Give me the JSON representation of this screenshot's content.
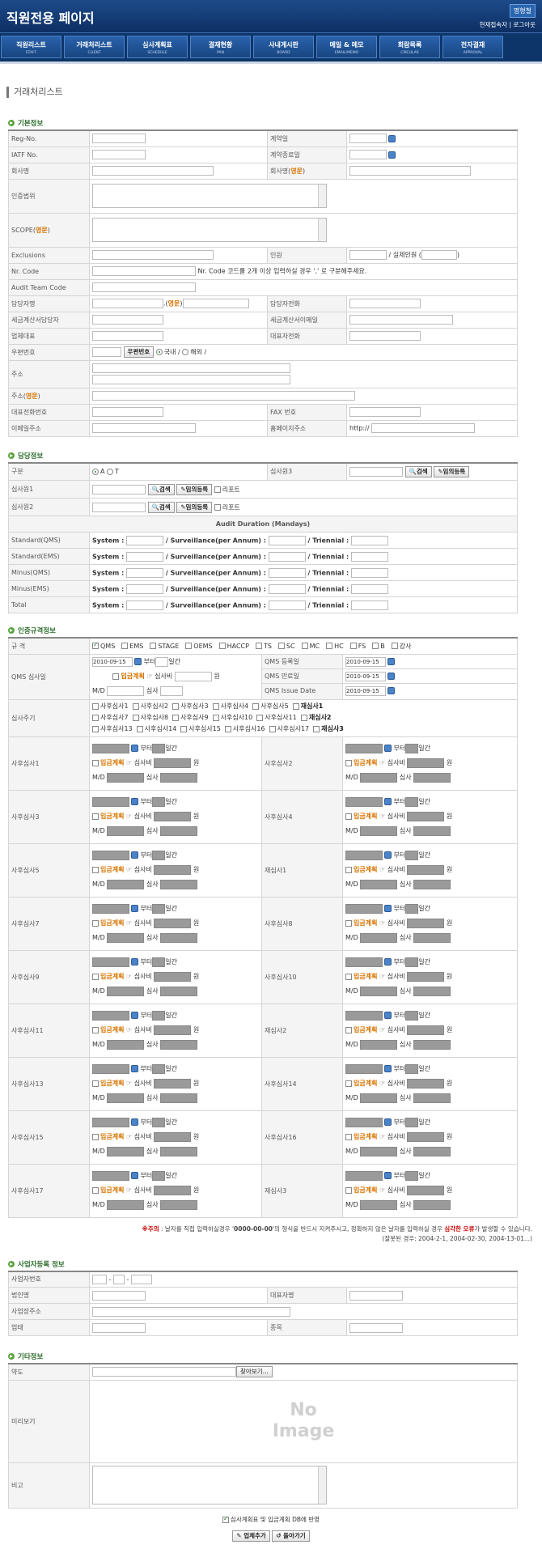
{
  "header": {
    "title": "직원전용 페이지",
    "user": "명형철",
    "links": "현재접속자 | 로그아웃"
  },
  "nav": [
    {
      "label": "직원리스트",
      "sub": "STAFF"
    },
    {
      "label": "거래처리스트",
      "sub": "CLIENT"
    },
    {
      "label": "심사계획표",
      "sub": "SCHEDULE"
    },
    {
      "label": "결재현황",
      "sub": "PAN"
    },
    {
      "label": "사내게시판",
      "sub": "BOARD"
    },
    {
      "label": "메일 & 메모",
      "sub": "EMAIL/MEMO"
    },
    {
      "label": "회람목록",
      "sub": "CIRCULAR"
    },
    {
      "label": "전자결재",
      "sub": "APPROVAL"
    }
  ],
  "page_title": "거래처리스트",
  "basic": {
    "section": "기본정보",
    "reg_no": "Reg-No.",
    "contract_date": "계약일",
    "iatf_no": "IATF No.",
    "contract_end": "계약종료일",
    "company": "회사명",
    "company_en_pre": "회사명(",
    "en": "영문",
    "close": ")",
    "cert_scope": "인증범위",
    "scope_pre": "SCOPE(",
    "exclusions": "Exclusions",
    "staff": "인원",
    "staff_actual": "/ 실제인원 (",
    "staff_close": ")",
    "nr_code": "Nr. Code",
    "nr_code_note": "Nr. Code 코드를 2개 이상 입력하실 경우 ',' 로 구분해주세요.",
    "audit_team": "Audit Team Code",
    "contact": "담당자명",
    "contact_en": ".(",
    "contact_phone": "담당자전화",
    "tax_contact": "세금계산서담당자",
    "tax_email": "세금계산서이메일",
    "ceo": "업체대표",
    "ceo_phone": "대표자전화",
    "zip": "우편번호",
    "zip_btn": "우편번호",
    "domestic": "국내 /",
    "abroad": "해외 /",
    "address": "주소",
    "address_en_pre": "주소(",
    "main_phone": "대표전화번호",
    "fax": "FAX 번호",
    "email": "이메일주소",
    "homepage": "홈페이지주소",
    "homepage_value": "http://"
  },
  "contact": {
    "section": "담당정보",
    "type": "구분",
    "opt_a": "A",
    "opt_t": "T",
    "auditor1": "심사원1",
    "auditor2": "심사원2",
    "auditor3": "심사원3",
    "search": "검색",
    "temp_reg": "임의등록",
    "report": "리포트",
    "duration_title": "Audit Duration (Mandays)",
    "system": "System :",
    "surv": "/ Surveillance(per Annum) :",
    "trien": "/ Triennial :",
    "rows": [
      "Standard(QMS)",
      "Standard(EMS)",
      "Minus(QMS)",
      "Minus(EMS)",
      "Total"
    ]
  },
  "cert": {
    "section": "인증규격정보",
    "standard": "규 격",
    "standards": [
      "QMS",
      "EMS",
      "STAGE",
      "OEMS",
      "HACCP",
      "TS",
      "SC",
      "MC",
      "HC",
      "FS",
      "B",
      "강사"
    ],
    "qms_date": "2010-09-15",
    "from": "부터",
    "days": "일간",
    "plan": "입금계획",
    "plan_icon": "☞",
    "fee": "심사비",
    "won": "원",
    "qms_audit": "QMS 심사일",
    "qms_reg": "QMS 등록일",
    "qms_end": "QMS 만료일",
    "qms_issue": "QMS Issue Date",
    "md": "M/D",
    "audit": "심사",
    "cycle": "심사주기",
    "cycle_items": [
      "사후심사1",
      "사후심사2",
      "사후심사3",
      "사후심사4",
      "사후심사5",
      "재심사1",
      "사후심사7",
      "사후심사8",
      "사후심사9",
      "사후심사10",
      "사후심사11",
      "재심사2",
      "사후심사13",
      "사후심사14",
      "사후심사15",
      "사후심사16",
      "사후심사17",
      "재심사3"
    ],
    "blocks": [
      [
        "사후심사1",
        "사후심사2"
      ],
      [
        "사후심사3",
        "사후심사4"
      ],
      [
        "사후심사5",
        "재심사1"
      ],
      [
        "사후심사7",
        "사후심사8"
      ],
      [
        "사후심사9",
        "사후심사10"
      ],
      [
        "사후심사11",
        "재심사2"
      ],
      [
        "사후심사13",
        "사후심사14"
      ],
      [
        "사후심사15",
        "사후심사16"
      ],
      [
        "사후심사17",
        "재심사3"
      ]
    ],
    "notice_mark": "※주의",
    "notice_a": " : 날자를 직접 입력하실경우 '",
    "notice_fmt": "0000-00-00",
    "notice_b": "'의 형식을 반드시 지켜주시고, 정확하지 않은 날자를 입력하실 경우 ",
    "notice_err": "심각한 오류",
    "notice_c": "가 발생할 수 있습니다.",
    "notice2": "(잘못된 경우: 2004-2-1, 2004-02-30, 2004-13-01...)"
  },
  "biz": {
    "section": "사업자등록 정보",
    "reg_no": "사업자번호",
    "dash": "-",
    "corp": "법인명",
    "rep": "대표자명",
    "addr": "사업장주소",
    "biz_type": "업태",
    "biz_item": "종목"
  },
  "etc": {
    "section": "기타정보",
    "logo": "약도",
    "browse": "찾아보기...",
    "preview": "미리보기",
    "no": "No",
    "image": "Image",
    "note": "비고"
  },
  "footer": {
    "reflect": "심사계획표 및 입금계획 DB에 반영",
    "add": "업체추가",
    "back": "돌아가기"
  }
}
